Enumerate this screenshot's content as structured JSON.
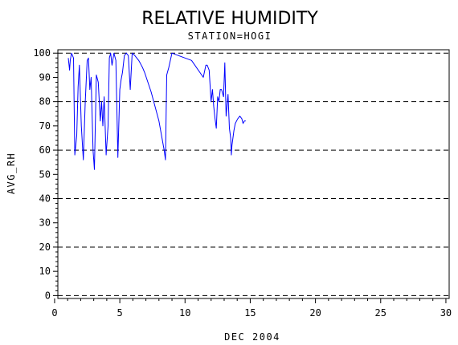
{
  "chart_data": {
    "type": "line",
    "title": "RELATIVE HUMIDITY",
    "subtitle": "STATION=HOGI",
    "xlabel": "DEC 2004",
    "ylabel": "AVG_RH",
    "xlim": [
      0,
      30
    ],
    "ylim": [
      0,
      100
    ],
    "xticks": [
      0,
      5,
      10,
      15,
      20,
      25,
      30
    ],
    "yticks": [
      0,
      10,
      20,
      30,
      40,
      50,
      60,
      70,
      80,
      90,
      100
    ],
    "ygrid_dashed": [
      0,
      20,
      40,
      60,
      80,
      100
    ],
    "colors": {
      "series": "#0000ff",
      "axes": "#000000",
      "grid": "#000000"
    },
    "series": [
      {
        "x": [
          1.05,
          1.15,
          1.2,
          1.3,
          1.45,
          1.55,
          1.7,
          1.8,
          1.9,
          2.05,
          2.2,
          2.35,
          2.5,
          2.6,
          2.7,
          2.8,
          2.95,
          3.05,
          3.2,
          3.35,
          3.5,
          3.6,
          3.7,
          3.8,
          3.95,
          4.1,
          4.2,
          4.3,
          4.4,
          4.55,
          4.7,
          4.85,
          5.0,
          5.1,
          5.2,
          5.35,
          5.5,
          5.65,
          5.8,
          5.95,
          6.15,
          6.3,
          6.45,
          6.55,
          6.65,
          6.75,
          6.9,
          7.4,
          8.0,
          8.4,
          8.5,
          8.6,
          8.75,
          9.0,
          9.5,
          10.5,
          11.4,
          11.6,
          11.7,
          11.85,
          12.0,
          12.1,
          12.2,
          12.3,
          12.4,
          12.5,
          12.6,
          12.7,
          12.8,
          12.95,
          13.05,
          13.15,
          13.3,
          13.4,
          13.5,
          13.55,
          13.6,
          13.7,
          13.75,
          13.85,
          13.95,
          14.05,
          14.2,
          14.35,
          14.45,
          14.55,
          14.65
        ],
        "y": [
          98,
          93,
          97,
          100,
          98,
          58,
          66,
          86,
          95,
          70,
          56,
          80,
          97,
          98,
          85,
          90,
          60,
          52,
          91,
          88,
          72,
          80,
          70,
          82,
          58,
          70,
          98,
          100,
          95,
          100,
          97,
          57,
          85,
          89,
          92,
          99,
          100,
          99,
          85,
          100,
          99,
          98,
          97,
          96,
          95,
          94,
          92,
          84,
          72,
          60,
          56,
          91,
          94,
          100,
          99,
          97,
          90,
          95,
          95,
          93,
          80,
          85,
          78,
          73,
          69,
          82,
          80,
          85,
          85,
          82,
          96,
          74,
          83,
          69,
          65,
          58,
          62,
          66,
          68,
          71,
          72,
          73,
          74,
          73,
          71,
          72,
          72
        ]
      }
    ]
  }
}
